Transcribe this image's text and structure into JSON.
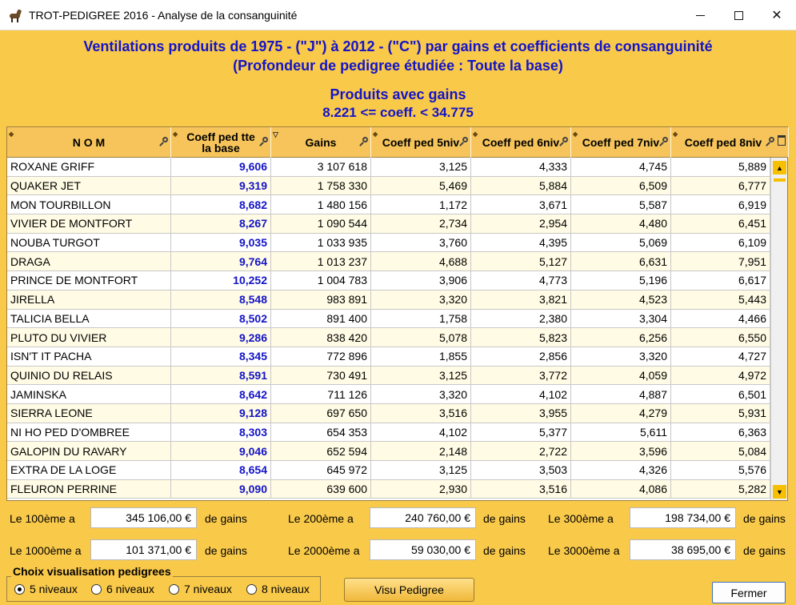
{
  "window": {
    "title": "TROT-PEDIGREE 2016  -  Analyse de la consanguinité"
  },
  "headings": {
    "line1": "Ventilations produits  de 1975 - (\"J\") à 2012 - (\"C\") par gains et  coefficients de consanguinité",
    "line2": "(Profondeur de pedigree étudiée : Toute la base)",
    "line3": "Produits avec gains",
    "line4": "8.221 <= coeff. < 34.775"
  },
  "table": {
    "columns": [
      "N O M",
      "Coeff ped tte la base",
      "Gains",
      "Coeff ped 5niv",
      "Coeff ped 6niv",
      "Coeff ped 7niv",
      "Coeff ped 8niv"
    ],
    "rows": [
      [
        "ROXANE GRIFF",
        "9,606",
        "3 107 618",
        "3,125",
        "4,333",
        "4,745",
        "5,889"
      ],
      [
        "QUAKER JET",
        "9,319",
        "1 758 330",
        "5,469",
        "5,884",
        "6,509",
        "6,777"
      ],
      [
        "MON TOURBILLON",
        "8,682",
        "1 480 156",
        "1,172",
        "3,671",
        "5,587",
        "6,919"
      ],
      [
        "VIVIER DE MONTFORT",
        "8,267",
        "1 090 544",
        "2,734",
        "2,954",
        "4,480",
        "6,451"
      ],
      [
        "NOUBA TURGOT",
        "9,035",
        "1 033 935",
        "3,760",
        "4,395",
        "5,069",
        "6,109"
      ],
      [
        "DRAGA",
        "9,764",
        "1 013 237",
        "4,688",
        "5,127",
        "6,631",
        "7,951"
      ],
      [
        "PRINCE DE MONTFORT",
        "10,252",
        "1 004 783",
        "3,906",
        "4,773",
        "5,196",
        "6,617"
      ],
      [
        "JIRELLA",
        "8,548",
        "983 891",
        "3,320",
        "3,821",
        "4,523",
        "5,443"
      ],
      [
        "TALICIA BELLA",
        "8,502",
        "891 400",
        "1,758",
        "2,380",
        "3,304",
        "4,466"
      ],
      [
        "PLUTO DU VIVIER",
        "9,286",
        "838 420",
        "5,078",
        "5,823",
        "6,256",
        "6,550"
      ],
      [
        "ISN'T IT PACHA",
        "8,345",
        "772 896",
        "1,855",
        "2,856",
        "3,320",
        "4,727"
      ],
      [
        "QUINIO DU RELAIS",
        "8,591",
        "730 491",
        "3,125",
        "3,772",
        "4,059",
        "4,972"
      ],
      [
        "JAMINSKA",
        "8,642",
        "711 126",
        "3,320",
        "4,102",
        "4,887",
        "6,501"
      ],
      [
        "SIERRA LEONE",
        "9,128",
        "697 650",
        "3,516",
        "3,955",
        "4,279",
        "5,931"
      ],
      [
        "NI HO PED D'OMBREE",
        "8,303",
        "654 353",
        "4,102",
        "5,377",
        "5,611",
        "6,363"
      ],
      [
        "GALOPIN DU RAVARY",
        "9,046",
        "652 594",
        "2,148",
        "2,722",
        "3,596",
        "5,084"
      ],
      [
        "EXTRA DE LA LOGE",
        "8,654",
        "645 972",
        "3,125",
        "3,503",
        "4,326",
        "5,576"
      ],
      [
        "FLEURON PERRINE",
        "9,090",
        "639 600",
        "2,930",
        "3,516",
        "4,086",
        "5,282"
      ]
    ]
  },
  "stats": {
    "r100_label": "Le 100ème a",
    "r100_value": "345 106,00 €",
    "r200_label": "Le 200ème a",
    "r200_value": "240 760,00 €",
    "r300_label": "Le 300ème a",
    "r300_value": "198 734,00 €",
    "r1000_label": "Le 1000ème a",
    "r1000_value": "101 371,00 €",
    "r2000_label": "Le 2000ème a",
    "r2000_value": "59 030,00 €",
    "r3000_label": "Le 3000ème a",
    "r3000_value": "38 695,00 €",
    "suffix": "de gains"
  },
  "pedigree_choice": {
    "title": "Choix visualisation pedigrees",
    "options": [
      "5 niveaux",
      "6 niveaux",
      "7 niveaux",
      "8 niveaux"
    ],
    "selected": "5 niveaux"
  },
  "buttons": {
    "visu": "Visu Pedigree",
    "close": "Fermer"
  },
  "colors": {
    "background": "#f9c94a",
    "accent_text": "#1414c8",
    "header": "#f6c45a"
  }
}
